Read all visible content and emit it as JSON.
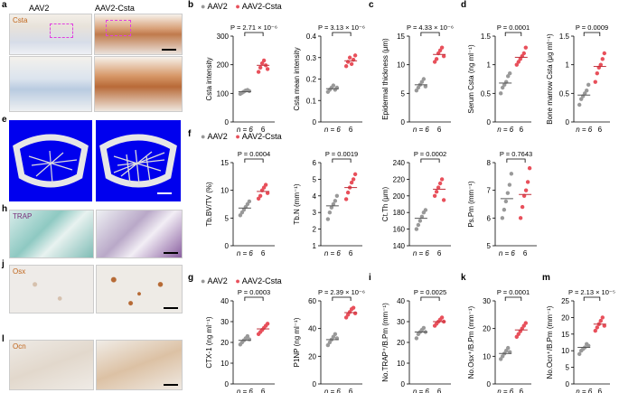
{
  "image_panels": {
    "col_heads": [
      "AAV2",
      "AAV2-Csta"
    ],
    "labels": {
      "a": "a",
      "e": "e",
      "h": "h",
      "j": "j",
      "l": "l"
    },
    "stains": {
      "a": "Csta",
      "h": "TRAP",
      "j": "Osx",
      "l": "Ocn"
    },
    "colors": {
      "csta": "#c0651a",
      "trap": "#7a2f7c",
      "osx": "#c0651a",
      "ocn": "#c0651a",
      "bone_bg": "#0000ee"
    }
  },
  "legend_b": {
    "items": [
      "AAV2",
      "AAV2-Csta"
    ]
  },
  "legend_f": {
    "items": [
      "AAV2",
      "AAV2-Csta"
    ]
  },
  "legend_g": {
    "items": [
      "AAV2",
      "AAV2-Csta"
    ]
  },
  "colors": {
    "ctrl": "#999999",
    "treat": "#e8505b"
  },
  "n_label": "n = 6",
  "second_n": "6",
  "chart_data": [
    {
      "panel": "b",
      "type": "scatter",
      "ylabel": "Csta intensity",
      "ylim": [
        0,
        300
      ],
      "yticks": [
        0,
        100,
        200,
        300
      ],
      "p": "P = 2.71 × 10⁻⁶",
      "ctrl": [
        98,
        102,
        106,
        110,
        112,
        108
      ],
      "treat": [
        175,
        190,
        205,
        215,
        198,
        185
      ],
      "ctrl_mean": 106,
      "treat_mean": 198
    },
    {
      "panel": "b2",
      "type": "scatter",
      "ylabel": "Csta mean intensity",
      "ylim": [
        0,
        0.4
      ],
      "yticks": [
        0,
        0.1,
        0.2,
        0.3,
        0.4
      ],
      "p": "P = 3.13 × 10⁻⁶",
      "ctrl": [
        0.14,
        0.15,
        0.16,
        0.17,
        0.15,
        0.16
      ],
      "treat": [
        0.26,
        0.28,
        0.3,
        0.27,
        0.29,
        0.31
      ],
      "ctrl_mean": 0.155,
      "treat_mean": 0.285
    },
    {
      "panel": "c",
      "type": "scatter",
      "ylabel": "Epidermal thickness (μm)",
      "ylim": [
        0,
        15
      ],
      "yticks": [
        0,
        5,
        10,
        15
      ],
      "p": "P = 4.33 × 10⁻⁶",
      "ctrl": [
        5.5,
        6,
        6.5,
        7,
        7.5,
        6.2
      ],
      "treat": [
        10.5,
        11,
        12,
        12.5,
        13,
        11.5
      ],
      "ctrl_mean": 6.5,
      "treat_mean": 11.8
    },
    {
      "panel": "d",
      "type": "scatter",
      "ylabel": "Serum Csta (ng ml⁻¹)",
      "ylim": [
        0,
        1.5
      ],
      "yticks": [
        0,
        0.5,
        1.0,
        1.5
      ],
      "p": "P = 0.0001",
      "ctrl": [
        0.5,
        0.6,
        0.65,
        0.7,
        0.8,
        0.85
      ],
      "treat": [
        1.0,
        1.05,
        1.1,
        1.15,
        1.2,
        1.3
      ],
      "ctrl_mean": 0.68,
      "treat_mean": 1.13
    },
    {
      "panel": "d2",
      "type": "scatter",
      "ylabel": "Bone marrow Csta (μg ml⁻¹)",
      "ylim": [
        0,
        1.5
      ],
      "yticks": [
        0,
        0.5,
        1.0,
        1.5
      ],
      "p": "P = 0.0009",
      "ctrl": [
        0.3,
        0.4,
        0.45,
        0.5,
        0.55,
        0.65
      ],
      "treat": [
        0.7,
        0.85,
        0.95,
        1.0,
        1.1,
        1.2
      ],
      "ctrl_mean": 0.47,
      "treat_mean": 0.97
    },
    {
      "panel": "f",
      "type": "scatter",
      "ylabel": "Tb.BV/TV (%)",
      "ylim": [
        0,
        15
      ],
      "yticks": [
        0,
        5,
        10,
        15
      ],
      "p": "P = 0.0004",
      "ctrl": [
        5.5,
        6,
        6.5,
        7,
        7.5,
        8
      ],
      "treat": [
        8.5,
        9,
        10,
        10.5,
        11,
        9.5
      ],
      "ctrl_mean": 6.8,
      "treat_mean": 9.8
    },
    {
      "panel": "f2",
      "type": "scatter",
      "ylabel": "Tb.N (mm⁻¹)",
      "ylim": [
        1,
        6
      ],
      "yticks": [
        1,
        2,
        3,
        4,
        5,
        6
      ],
      "p": "P = 0.0019",
      "ctrl": [
        2.6,
        3,
        3.3,
        3.5,
        3.7,
        4.0
      ],
      "treat": [
        3.8,
        4.2,
        4.5,
        4.8,
        5.0,
        5.3
      ],
      "ctrl_mean": 3.4,
      "treat_mean": 4.5
    },
    {
      "panel": "f3",
      "type": "scatter",
      "ylabel": "Ct.Th (μm)",
      "ylim": [
        140,
        240
      ],
      "yticks": [
        140,
        160,
        180,
        200,
        220,
        240
      ],
      "p": "P = 0.0002",
      "ctrl": [
        160,
        165,
        170,
        175,
        180,
        183
      ],
      "treat": [
        200,
        205,
        210,
        215,
        220,
        195
      ],
      "ctrl_mean": 173,
      "treat_mean": 208
    },
    {
      "panel": "f4",
      "type": "scatter",
      "ylabel": "Ps.Pm (mm⁻¹)",
      "ylim": [
        5,
        8
      ],
      "yticks": [
        5,
        6,
        7,
        8
      ],
      "p": "P = 0.7643",
      "ctrl": [
        6.0,
        6.3,
        6.6,
        6.9,
        7.2,
        7.6
      ],
      "treat": [
        6.0,
        6.4,
        6.8,
        7.0,
        7.3,
        7.8
      ],
      "ctrl_mean": 6.7,
      "treat_mean": 6.85
    },
    {
      "panel": "g",
      "type": "scatter",
      "ylabel": "CTX-1 (ng ml⁻¹)",
      "ylim": [
        0,
        40
      ],
      "yticks": [
        0,
        10,
        20,
        30,
        40
      ],
      "p": "P = 0.0003",
      "ctrl": [
        19,
        20,
        21,
        22,
        23,
        21.5
      ],
      "treat": [
        24,
        25,
        26,
        27,
        28,
        29
      ],
      "ctrl_mean": 21,
      "treat_mean": 26.5
    },
    {
      "panel": "g2",
      "type": "scatter",
      "ylabel": "P1NP (ng ml⁻¹)",
      "ylim": [
        0,
        60
      ],
      "yticks": [
        0,
        20,
        40,
        60
      ],
      "p": "P = 2.39 × 10⁻⁶",
      "ctrl": [
        28,
        30,
        32,
        34,
        36,
        33
      ],
      "treat": [
        48,
        50,
        52,
        54,
        55,
        51
      ],
      "ctrl_mean": 32,
      "treat_mean": 51.5
    },
    {
      "panel": "i",
      "type": "scatter",
      "ylabel": "No.TRAP⁺/B.Pm (mm⁻¹)",
      "ylim": [
        0,
        40
      ],
      "yticks": [
        0,
        10,
        20,
        30,
        40
      ],
      "p": "P = 0.0025",
      "ctrl": [
        22,
        24,
        25,
        26,
        27,
        25
      ],
      "treat": [
        28,
        29,
        30,
        31,
        32,
        30
      ],
      "ctrl_mean": 25,
      "treat_mean": 30
    },
    {
      "panel": "k",
      "type": "scatter",
      "ylabel": "No.Osx⁺/B.Pm (mm⁻¹)",
      "ylim": [
        0,
        30
      ],
      "yticks": [
        0,
        10,
        20,
        30
      ],
      "p": "P = 0.0001",
      "ctrl": [
        9,
        10,
        11,
        12,
        13,
        11.5
      ],
      "treat": [
        17,
        18,
        19,
        20,
        21,
        22
      ],
      "ctrl_mean": 11,
      "treat_mean": 19.5
    },
    {
      "panel": "m",
      "type": "scatter",
      "ylabel": "No.Ocn⁺/B.Pm (mm⁻¹)",
      "ylim": [
        0,
        25
      ],
      "yticks": [
        0,
        5,
        10,
        15,
        20,
        25
      ],
      "p": "P = 2.13 × 10⁻⁵",
      "ctrl": [
        9,
        10,
        10.5,
        11,
        12,
        11.5
      ],
      "treat": [
        16,
        17,
        18,
        19,
        20,
        17.5
      ],
      "ctrl_mean": 11,
      "treat_mean": 18
    }
  ]
}
